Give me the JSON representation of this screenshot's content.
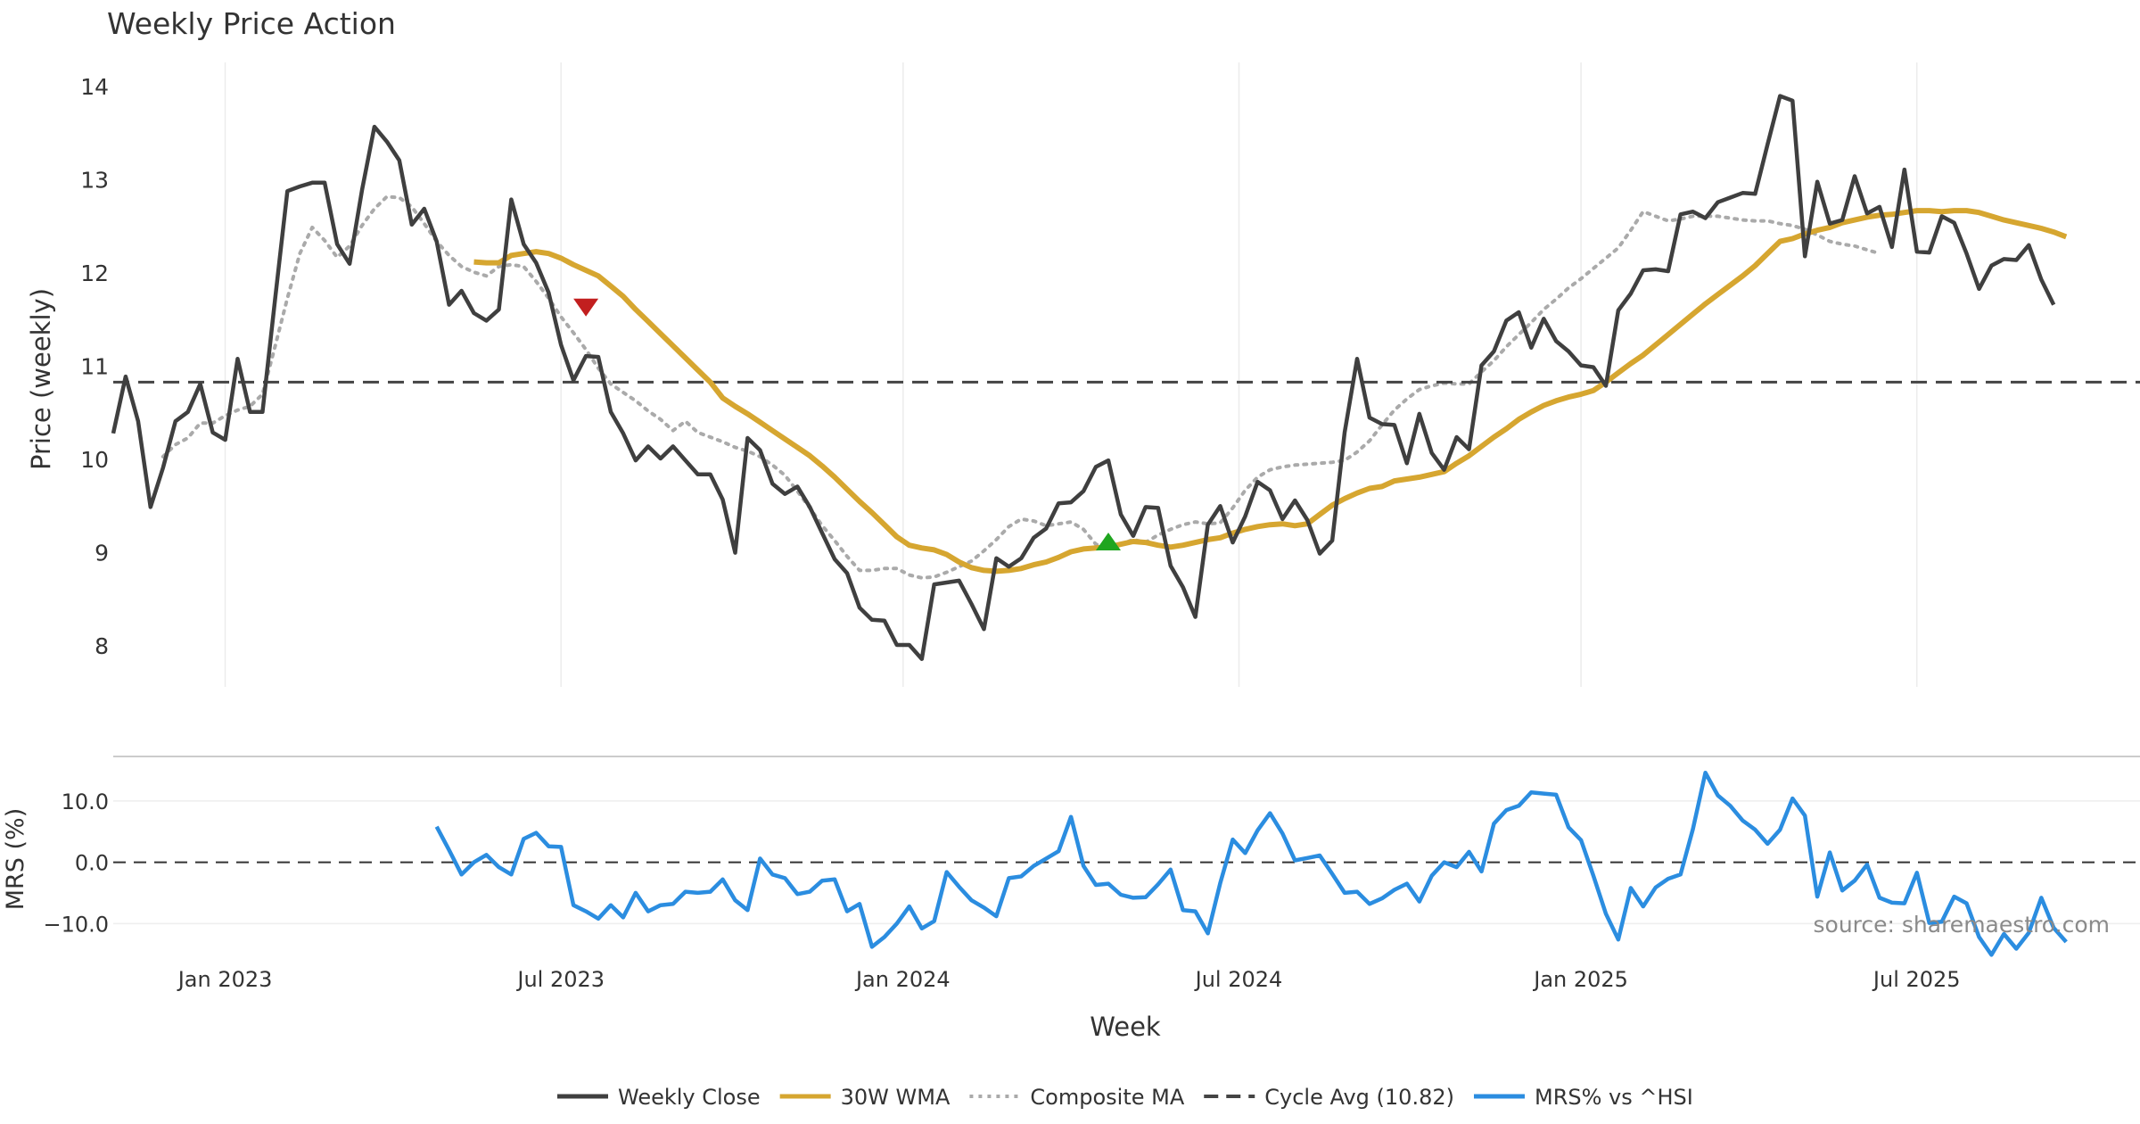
{
  "chart_data": [
    {
      "type": "line",
      "title": "Weekly Price Action",
      "ylabel": "Price (weekly)",
      "ylim": [
        7.55,
        14.25
      ],
      "yticks": [
        "8",
        "9",
        "10",
        "11",
        "12",
        "13",
        "14"
      ],
      "ytick_values": [
        8,
        9,
        10,
        11,
        12,
        13,
        14
      ],
      "grid": true,
      "series": [
        {
          "name": "Weekly Close",
          "color": "#3f3f3f",
          "style": "solid",
          "values": [
            10.27,
            10.88,
            10.4,
            9.48,
            9.9,
            10.4,
            10.5,
            10.8,
            10.28,
            10.2,
            11.07,
            10.5,
            10.5,
            11.7,
            12.87,
            12.92,
            12.96,
            12.96,
            12.3,
            12.09,
            12.88,
            13.56,
            13.4,
            13.2,
            12.51,
            12.68,
            12.33,
            11.65,
            11.8,
            11.56,
            11.48,
            11.6,
            12.78,
            12.3,
            12.1,
            11.78,
            11.22,
            10.84,
            11.1,
            11.09,
            10.5,
            10.27,
            9.98,
            10.13,
            10,
            10.13,
            9.98,
            9.83,
            9.83,
            9.56,
            8.99,
            10.22,
            10.09,
            9.73,
            9.62,
            9.7,
            9.48,
            9.2,
            8.92,
            8.77,
            8.4,
            8.27,
            8.26,
            8,
            8,
            7.85,
            8.65,
            8.67,
            8.69,
            8.44,
            8.17,
            8.93,
            8.84,
            8.93,
            9.15,
            9.25,
            9.52,
            9.53,
            9.65,
            9.91,
            9.98,
            9.4,
            9.17,
            9.48,
            9.47,
            8.85,
            8.62,
            8.3,
            9.29,
            9.49,
            9.1,
            9.38,
            9.75,
            9.66,
            9.35,
            9.55,
            9.34,
            8.98,
            9.12,
            10.28,
            11.07,
            10.44,
            10.37,
            10.36,
            9.95,
            10.48,
            10.06,
            9.88,
            10.23,
            10.1,
            11,
            11.15,
            11.48,
            11.57,
            11.19,
            11.5,
            11.26,
            11.15,
            11,
            10.98,
            10.78,
            11.59,
            11.77,
            12.02,
            12.03,
            12.01,
            12.62,
            12.65,
            12.58,
            12.75,
            12.8,
            12.85,
            12.84,
            13.37,
            13.89,
            13.84,
            12.17,
            12.97,
            12.52,
            12.56,
            13.03,
            12.63,
            12.7,
            12.27,
            13.1,
            12.22,
            12.21,
            12.6,
            12.53,
            12.2,
            11.82,
            12.07,
            12.14,
            12.13,
            12.29,
            11.92,
            11.65
          ]
        },
        {
          "name": "30W WMA",
          "color": "#d6a630",
          "style": "solid",
          "start_index": 29,
          "values": [
            12.11,
            12.1,
            12.1,
            12.18,
            12.2,
            12.22,
            12.2,
            12.15,
            12.08,
            12.02,
            11.96,
            11.85,
            11.74,
            11.6,
            11.47,
            11.34,
            11.21,
            11.08,
            10.95,
            10.82,
            10.65,
            10.56,
            10.48,
            10.39,
            10.3,
            10.21,
            10.12,
            10.03,
            9.92,
            9.8,
            9.67,
            9.54,
            9.42,
            9.29,
            9.16,
            9.07,
            9.04,
            9.02,
            8.97,
            8.89,
            8.83,
            8.8,
            8.79,
            8.8,
            8.82,
            8.86,
            8.89,
            8.94,
            9,
            9.03,
            9.04,
            9.05,
            9.08,
            9.11,
            9.1,
            9.07,
            9.05,
            9.07,
            9.1,
            9.13,
            9.15,
            9.2,
            9.24,
            9.27,
            9.29,
            9.3,
            9.28,
            9.3,
            9.4,
            9.5,
            9.57,
            9.63,
            9.68,
            9.7,
            9.76,
            9.78,
            9.8,
            9.83,
            9.86,
            9.95,
            10.03,
            10.13,
            10.23,
            10.32,
            10.42,
            10.5,
            10.57,
            10.62,
            10.66,
            10.69,
            10.73,
            10.82,
            10.92,
            11.02,
            11.11,
            11.22,
            11.33,
            11.44,
            11.55,
            11.66,
            11.76,
            11.86,
            11.96,
            12.07,
            12.2,
            12.33,
            12.36,
            12.41,
            12.45,
            12.48,
            12.53,
            12.56,
            12.59,
            12.61,
            12.62,
            12.64,
            12.66,
            12.66,
            12.65,
            12.66,
            12.66,
            12.64,
            12.6,
            12.56,
            12.53,
            12.5,
            12.47,
            12.43,
            12.38
          ]
        },
        {
          "name": "Composite MA",
          "color": "#aaaaaa",
          "style": "dotted",
          "start_index": 4,
          "values": [
            10.02,
            10.15,
            10.22,
            10.38,
            10.38,
            10.46,
            10.52,
            10.56,
            10.69,
            11.2,
            11.72,
            12.2,
            12.48,
            12.34,
            12.16,
            12.28,
            12.5,
            12.68,
            12.81,
            12.8,
            12.7,
            12.52,
            12.33,
            12.18,
            12.06,
            12,
            11.96,
            12.06,
            12.08,
            12.06,
            11.9,
            11.72,
            11.52,
            11.35,
            11.17,
            10.97,
            10.8,
            10.71,
            10.62,
            10.51,
            10.42,
            10.3,
            10.4,
            10.28,
            10.23,
            10.18,
            10.12,
            10.08,
            10.02,
            9.93,
            9.82,
            9.65,
            9.47,
            9.28,
            9.12,
            8.95,
            8.8,
            8.8,
            8.82,
            8.82,
            8.75,
            8.72,
            8.73,
            8.78,
            8.84,
            8.9,
            9.01,
            9.13,
            9.27,
            9.35,
            9.33,
            9.28,
            9.3,
            9.32,
            9.24,
            9.08,
            9.04,
            9.08,
            9.13,
            9.1,
            9.18,
            9.24,
            9.29,
            9.32,
            9.3,
            9.31,
            9.47,
            9.66,
            9.8,
            9.88,
            9.91,
            9.93,
            9.94,
            9.95,
            9.96,
            9.98,
            10.07,
            10.19,
            10.36,
            10.52,
            10.64,
            10.74,
            10.78,
            10.81,
            10.8,
            10.8,
            10.93,
            11.05,
            11.2,
            11.33,
            11.46,
            11.6,
            11.71,
            11.83,
            11.93,
            12.04,
            12.15,
            12.26,
            12.45,
            12.65,
            12.6,
            12.55,
            12.57,
            12.6,
            12.6,
            12.6,
            12.58,
            12.56,
            12.55,
            12.55,
            12.52,
            12.5,
            12.46,
            12.4,
            12.33,
            12.3,
            12.28,
            12.24,
            12.2
          ]
        },
        {
          "name": "Cycle Avg (10.82)",
          "color": "#444444",
          "style": "dashed",
          "value": 10.82
        }
      ],
      "markers": [
        {
          "type": "sell",
          "shape": "triangle-down",
          "color": "#c21f1f",
          "x_index": 38,
          "y": 11.63
        },
        {
          "type": "buy",
          "shape": "triangle-up",
          "color": "#1fa51f",
          "x_index": 80,
          "y": 9.1
        }
      ]
    },
    {
      "type": "line",
      "ylabel": "MRS (%)",
      "ylim": [
        -16.5,
        15.5
      ],
      "yticks": [
        "10.0",
        "0.0",
        "−10.0"
      ],
      "ytick_values": [
        10,
        0,
        -10
      ],
      "xlabel": "Week",
      "xticks": [
        "Jan 2023",
        "Jul 2023",
        "Jan 2024",
        "Jul 2024",
        "Jan 2025",
        "Jul 2025"
      ],
      "xtick_indices": [
        9,
        36,
        63.5,
        90.5,
        118,
        145
      ],
      "reference_line": 0,
      "annotation": "source: sharemaestro.com",
      "series": [
        {
          "name": "MRS% vs ^HSI",
          "color": "#2b8de0",
          "style": "solid",
          "start_index": 26,
          "values": [
            5.8,
            2,
            -2,
            0,
            1.2,
            -0.8,
            -2,
            3.8,
            4.8,
            2.6,
            2.5,
            -7,
            -8,
            -9.2,
            -7,
            -9,
            -5,
            -8,
            -7,
            -6.8,
            -4.8,
            -5,
            -4.8,
            -2.8,
            -6.2,
            -7.8,
            0.6,
            -2,
            -2.6,
            -5.2,
            -4.8,
            -3,
            -2.8,
            -8,
            -6.8,
            -13.8,
            -12.2,
            -10,
            -7.2,
            -10.8,
            -9.6,
            -1.6,
            -4,
            -6.2,
            -7.4,
            -8.8,
            -2.6,
            -2.3,
            -0.6,
            0.6,
            1.8,
            7.4,
            -0.6,
            -3.7,
            -3.5,
            -5.3,
            -5.8,
            -5.7,
            -3.6,
            -1.2,
            -7.8,
            -8,
            -11.6,
            -3.4,
            3.7,
            1.5,
            5.2,
            8,
            4.7,
            0.3,
            0.7,
            1.1,
            -1.9,
            -5,
            -4.8,
            -6.8,
            -5.9,
            -4.5,
            -3.5,
            -6.4,
            -2.2,
            0,
            -0.8,
            1.7,
            -1.5,
            6.3,
            8.5,
            9.2,
            11.4,
            11.2,
            11,
            5.7,
            3.6,
            -2.2,
            -8.4,
            -12.6,
            -4.2,
            -7.2,
            -4.1,
            -2.7,
            -2,
            5.4,
            14.6,
            10.9,
            9.2,
            6.8,
            5.3,
            3,
            5.3,
            10.4,
            7.6,
            -5.6,
            1.6,
            -4.6,
            -3,
            -0.4,
            -5.8,
            -6.6,
            -6.7,
            -1.7,
            -9.9,
            -9.7,
            -5.6,
            -6.7,
            -12.2,
            -15.1,
            -11.7,
            -14.1,
            -11.5,
            -5.8,
            -10.7,
            -13
          ]
        }
      ]
    }
  ],
  "legend": {
    "placement": "bottom-center",
    "items": [
      {
        "label": "Weekly Close",
        "color": "#3f3f3f",
        "style": "solid"
      },
      {
        "label": "30W WMA",
        "color": "#d6a630",
        "style": "solid"
      },
      {
        "label": "Composite MA",
        "color": "#aaaaaa",
        "style": "dotted"
      },
      {
        "label": "Cycle Avg (10.82)",
        "color": "#444444",
        "style": "dashed"
      },
      {
        "label": "MRS% vs ^HSI",
        "color": "#2b8de0",
        "style": "solid"
      }
    ]
  }
}
